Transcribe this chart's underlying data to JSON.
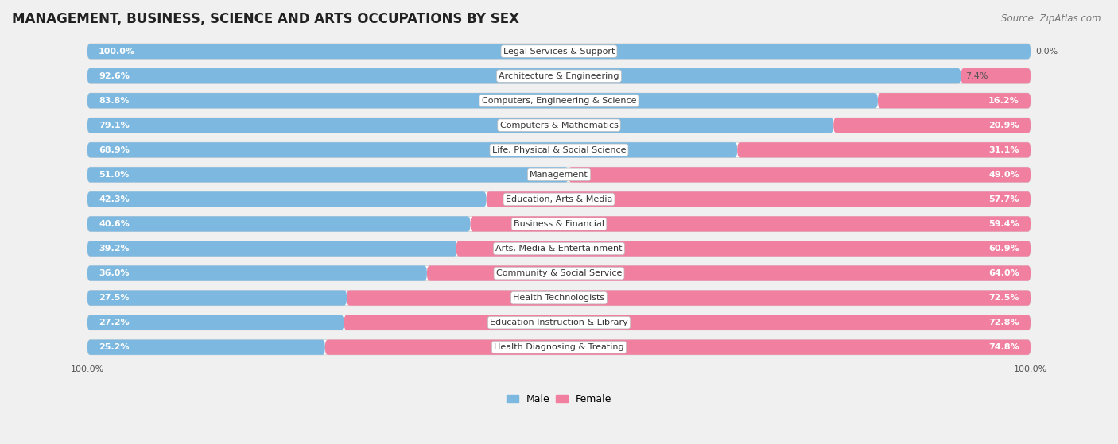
{
  "title": "MANAGEMENT, BUSINESS, SCIENCE AND ARTS OCCUPATIONS BY SEX",
  "source": "Source: ZipAtlas.com",
  "categories": [
    "Legal Services & Support",
    "Architecture & Engineering",
    "Computers, Engineering & Science",
    "Computers & Mathematics",
    "Life, Physical & Social Science",
    "Management",
    "Education, Arts & Media",
    "Business & Financial",
    "Arts, Media & Entertainment",
    "Community & Social Service",
    "Health Technologists",
    "Education Instruction & Library",
    "Health Diagnosing & Treating"
  ],
  "male_pct": [
    100.0,
    92.6,
    83.8,
    79.1,
    68.9,
    51.0,
    42.3,
    40.6,
    39.2,
    36.0,
    27.5,
    27.2,
    25.2
  ],
  "female_pct": [
    0.0,
    7.4,
    16.2,
    20.9,
    31.1,
    49.0,
    57.7,
    59.4,
    60.9,
    64.0,
    72.5,
    72.8,
    74.8
  ],
  "male_color": "#7cb8e0",
  "female_color": "#f07fa0",
  "bg_color": "#f0f0f0",
  "row_bg_color": "#e0e0e0",
  "title_fontsize": 12,
  "label_fontsize": 8.0,
  "bar_label_fontsize": 8.0,
  "legend_fontsize": 9,
  "source_fontsize": 8.5,
  "male_label_threshold": 10,
  "female_label_threshold": 10
}
